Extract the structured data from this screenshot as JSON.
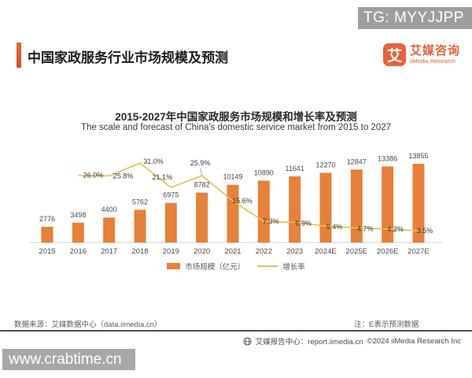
{
  "overlay": {
    "tg_badge": "TG: MYYJJPP",
    "watermark": "www.crabtime.cn"
  },
  "header": {
    "title": "中国家政服务行业市场规模及预测",
    "logo": {
      "icon_char": "艾",
      "name_cn": "艾媒咨询",
      "name_en": "iiMedia Research"
    }
  },
  "chart": {
    "title": "2015-2027年中国家政服务市场规模和增长率及预测",
    "subtitle": "The scale and forecast of China's domestic service market from 2015 to 2027"
  },
  "chart_data": {
    "type": "bar+line",
    "categories": [
      "2015",
      "2016",
      "2017",
      "2018",
      "2019",
      "2020",
      "2021",
      "2022",
      "2023",
      "2024E",
      "2025E",
      "2026E",
      "2027E"
    ],
    "series": [
      {
        "name": "市场规模（亿元）",
        "type": "bar",
        "color": "#e6803a",
        "values": [
          2776,
          3498,
          4400,
          5762,
          6975,
          8782,
          10149,
          10890,
          11641,
          12270,
          12847,
          13386,
          13855
        ]
      },
      {
        "name": "增长率",
        "type": "line",
        "color": "#e2c353",
        "start_index": 1,
        "values": [
          26.0,
          25.8,
          31.0,
          21.1,
          25.9,
          15.6,
          7.3,
          6.9,
          5.4,
          4.7,
          4.2,
          3.5
        ],
        "labels": [
          "26.0%",
          "25.8%",
          "31.0%",
          "21.1%",
          "25.9%",
          "15.6%",
          "7.3%",
          "6.9%",
          "5.4%",
          "4.7%",
          "4.2%",
          "3.5%"
        ]
      }
    ],
    "ylim_bar": [
      0,
      14000
    ],
    "grid": false,
    "legend_position": "bottom"
  },
  "legend": {
    "items": [
      {
        "label": "市场规模（亿元）",
        "color": "#e6803a",
        "type": "bar"
      },
      {
        "label": "增长率",
        "color": "#e2c353",
        "type": "line"
      }
    ]
  },
  "footer": {
    "source": "数据来源：艾媒数据中心（data.iimedia.cn）",
    "note": "注：E表示预测数据",
    "report": "艾媒报告中心：report.iimedia.cn",
    "copyright": "©2024  iiMedia Research Inc"
  }
}
